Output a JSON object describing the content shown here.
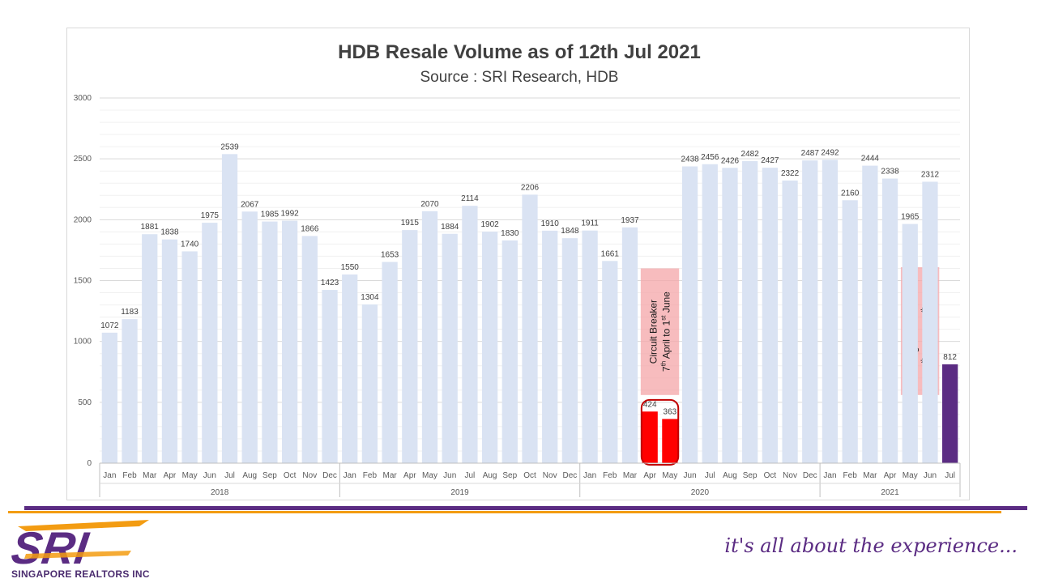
{
  "chart_data": {
    "type": "bar",
    "title": "HDB Resale Volume as of 12th Jul 2021",
    "subtitle": "Source : SRI Research, HDB",
    "ylim": [
      0,
      3000
    ],
    "yticks": [
      0,
      500,
      1000,
      1500,
      2000,
      2500,
      3000
    ],
    "grid": true,
    "years": [
      {
        "label": "2018",
        "months": [
          "Jan",
          "Feb",
          "Mar",
          "Apr",
          "May",
          "Jun",
          "Jul",
          "Aug",
          "Sep",
          "Oct",
          "Nov",
          "Dec"
        ],
        "values": [
          1072,
          1183,
          1881,
          1838,
          1740,
          1975,
          2539,
          2067,
          1985,
          1992,
          1866,
          1423
        ]
      },
      {
        "label": "2019",
        "months": [
          "Jan",
          "Feb",
          "Mar",
          "Apr",
          "May",
          "Jun",
          "Jul",
          "Aug",
          "Sep",
          "Oct",
          "Nov",
          "Dec"
        ],
        "values": [
          1550,
          1304,
          1653,
          1915,
          2070,
          1884,
          2114,
          1902,
          1830,
          2206,
          1910,
          1848
        ]
      },
      {
        "label": "2020",
        "months": [
          "Jan",
          "Feb",
          "Mar",
          "Apr",
          "May",
          "Jun",
          "Jul",
          "Aug",
          "Sep",
          "Oct",
          "Nov",
          "Dec"
        ],
        "values": [
          1911,
          1661,
          1937,
          424,
          363,
          2438,
          2456,
          2426,
          2482,
          2427,
          2322,
          2487
        ]
      },
      {
        "label": "2021",
        "months": [
          "Jan",
          "Feb",
          "Mar",
          "Apr",
          "May",
          "Jun",
          "Jul"
        ],
        "values": [
          2492,
          2160,
          2444,
          2338,
          1965,
          2312,
          812
        ]
      }
    ],
    "highlight_red": [
      "2020-Apr",
      "2020-May"
    ],
    "highlight_purple": [
      "2021-Jul"
    ],
    "colors": {
      "bar": "#dae3f3",
      "red": "#ff0000",
      "purple": "#5b2c83",
      "annotation_fill": "#f4a6a8"
    },
    "annotations": [
      {
        "line1": "Circuit Breaker",
        "line2_pre": "7",
        "line2_sup1": "th",
        "line2_mid": " April to 1",
        "line2_sup2": "st",
        "line2_post": " June"
      },
      {
        "line1": "Heightened Alert",
        "line2_pre": "16",
        "line2_sup1": "th",
        "line2_mid": " May  to 13",
        "line2_sup2": "th",
        "line2_post": " Jun"
      }
    ]
  },
  "footer": {
    "logo_text": "SRI",
    "company": "SINGAPORE REALTORS INC",
    "tagline": "it's all about the experience...",
    "colors": {
      "purple": "#5b2c83",
      "orange": "#f39c12"
    }
  }
}
